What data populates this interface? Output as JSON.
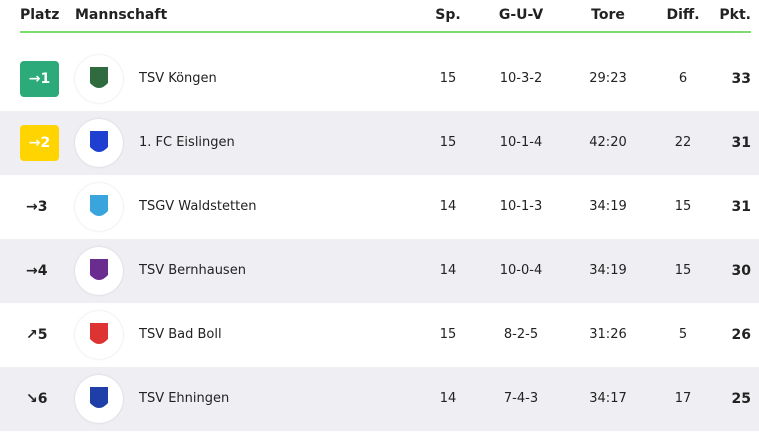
{
  "table": {
    "header": [
      "Platz",
      "Mannschaft",
      "Sp.",
      "G-U-V",
      "Tore",
      "Diff.",
      "Pkt."
    ],
    "rows": [
      [
        "→",
        "1",
        "TSV Köngen",
        "15",
        "10-3-2",
        "29:23",
        "6",
        "33"
      ],
      [
        "→",
        "2",
        "1. FC Eislingen",
        "15",
        "10-1-4",
        "42:20",
        "22",
        "31"
      ],
      [
        "→",
        "3",
        "TSGV Waldstetten",
        "14",
        "10-1-3",
        "34:19",
        "15",
        "31"
      ],
      [
        "→",
        "4",
        "TSV Bernhausen",
        "14",
        "10-0-4",
        "34:19",
        "15",
        "30"
      ],
      [
        "↗",
        "5",
        "TSV Bad Boll",
        "15",
        "8-2-5",
        "31:26",
        "5",
        "26"
      ],
      [
        "↘",
        "6",
        "TSV Ehningen",
        "14",
        "7-4-3",
        "34:17",
        "17",
        "25"
      ]
    ]
  }
}
